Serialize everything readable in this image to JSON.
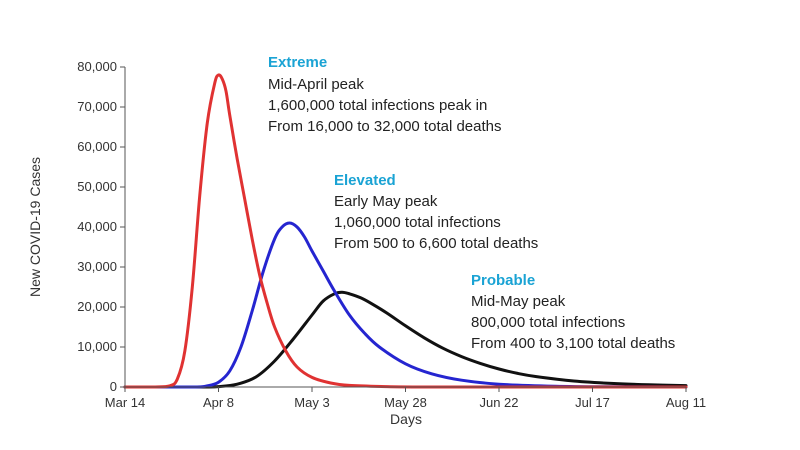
{
  "chart_data": {
    "type": "line",
    "xlabel": "Days",
    "ylabel": "New COVID-19 Cases",
    "x_ticks": [
      "Mar 14",
      "Apr 8",
      "May 3",
      "May 28",
      "Jun 22",
      "Jul 17",
      "Aug 11"
    ],
    "x_tick_days": [
      0,
      25,
      50,
      75,
      100,
      125,
      150
    ],
    "xlim": [
      0,
      150
    ],
    "y_ticks": [
      "0",
      "10,000",
      "20,000",
      "30,000",
      "40,000",
      "50,000",
      "60,000",
      "70,000",
      "80,000"
    ],
    "y_tick_values": [
      0,
      10000,
      20000,
      30000,
      40000,
      50000,
      60000,
      70000,
      80000
    ],
    "ylim": [
      0,
      80000
    ],
    "grid": false,
    "series": [
      {
        "key": "extreme",
        "color": "#e03232",
        "x": [
          0,
          8,
          12,
          14,
          16,
          18,
          20,
          22,
          24,
          25,
          26,
          27,
          28,
          30,
          32,
          34,
          36,
          38,
          40,
          43,
          46,
          50,
          55,
          60,
          70,
          80,
          100,
          150
        ],
        "y": [
          0,
          0,
          300,
          2000,
          9000,
          25000,
          48000,
          66000,
          76000,
          78000,
          77000,
          74000,
          68000,
          57000,
          47000,
          37000,
          28000,
          21000,
          15000,
          9000,
          5000,
          2400,
          1000,
          400,
          100,
          0,
          0,
          0
        ]
      },
      {
        "key": "elevated",
        "color": "#2525d0",
        "x": [
          0,
          18,
          22,
          25,
          28,
          31,
          34,
          37,
          40,
          42,
          44,
          46,
          48,
          50,
          53,
          56,
          60,
          64,
          68,
          75,
          82,
          90,
          100,
          115,
          130,
          150
        ],
        "y": [
          0,
          0,
          300,
          1200,
          4000,
          10000,
          19000,
          29000,
          37000,
          40000,
          41000,
          40000,
          37500,
          34000,
          29000,
          24000,
          18000,
          13500,
          10000,
          5800,
          3300,
          1700,
          700,
          200,
          50,
          0
        ]
      },
      {
        "key": "probable",
        "color": "#111111",
        "x": [
          0,
          20,
          25,
          30,
          35,
          40,
          45,
          50,
          53,
          56,
          58,
          60,
          63,
          66,
          70,
          75,
          80,
          85,
          90,
          95,
          100,
          105,
          110,
          120,
          130,
          140,
          150
        ],
        "y": [
          0,
          0,
          100,
          700,
          2500,
          6500,
          12000,
          18000,
          21500,
          23300,
          23700,
          23300,
          22300,
          20800,
          18500,
          15300,
          12300,
          9700,
          7600,
          5900,
          4500,
          3400,
          2600,
          1500,
          900,
          550,
          350
        ]
      }
    ],
    "annotations": [
      {
        "key": "extreme",
        "title": "Extreme",
        "lines": [
          "Mid-April peak",
          "1,600,000 total infections peak in",
          "From 16,000 to 32,000 total deaths"
        ],
        "title_color": "#1aa3d4"
      },
      {
        "key": "elevated",
        "title": "Elevated",
        "lines": [
          "Early May peak",
          "1,060,000 total infections",
          "From 500 to 6,600 total deaths"
        ],
        "title_color": "#1aa3d4"
      },
      {
        "key": "probable",
        "title": "Probable",
        "lines": [
          "Mid-May peak",
          "800,000 total infections",
          "From 400 to 3,100 total deaths"
        ],
        "title_color": "#1aa3d4"
      }
    ]
  }
}
